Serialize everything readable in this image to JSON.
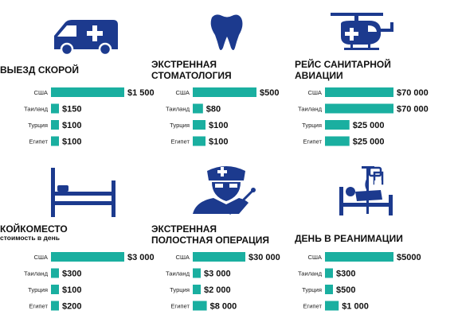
{
  "colors": {
    "bar": "#1aafa0",
    "icon": "#1c3a8e"
  },
  "chart_data": [
    {
      "type": "bar",
      "title": [
        "ВЫЕЗД СКОРОЙ"
      ],
      "subtitle": "",
      "icon": "ambulance-icon",
      "categories": [
        "США",
        "Таиланд",
        "Турция",
        "Египет"
      ],
      "values": [
        1500,
        150,
        100,
        100
      ],
      "value_labels": [
        "$1 500",
        "$150",
        "$100",
        "$100"
      ]
    },
    {
      "type": "bar",
      "title": [
        "ЭКСТРЕННАЯ",
        "СТОМАТОЛОГИЯ"
      ],
      "subtitle": "",
      "icon": "tooth-icon",
      "categories": [
        "США",
        "Таиланд",
        "Турция",
        "Египет"
      ],
      "values": [
        500,
        80,
        100,
        100
      ],
      "value_labels": [
        "$500",
        "$80",
        "$100",
        "$100"
      ]
    },
    {
      "type": "bar",
      "title": [
        "РЕЙС САНИТАРНОЙ",
        "АВИАЦИИ"
      ],
      "subtitle": "",
      "icon": "helicopter-icon",
      "categories": [
        "США",
        "Таиланд",
        "Турция",
        "Египет"
      ],
      "values": [
        70000,
        70000,
        25000,
        25000
      ],
      "value_labels": [
        "$70 000",
        "$70 000",
        "$25 000",
        "$25 000"
      ]
    },
    {
      "type": "bar",
      "title": [
        "КОЙКОМЕСТО"
      ],
      "subtitle": "стоимость в день",
      "icon": "hospital-bed-icon",
      "categories": [
        "США",
        "Таиланд",
        "Турция",
        "Египет"
      ],
      "values": [
        3000,
        300,
        100,
        200
      ],
      "value_labels": [
        "$3 000",
        "$300",
        "$100",
        "$200"
      ]
    },
    {
      "type": "bar",
      "title": [
        "ЭКСТРЕННАЯ",
        "ПОЛОСТНАЯ ОПЕРАЦИЯ"
      ],
      "subtitle": "",
      "icon": "surgeon-icon",
      "categories": [
        "США",
        "Таиланд",
        "Турция",
        "Египет"
      ],
      "values": [
        30000,
        3000,
        2000,
        8000
      ],
      "value_labels": [
        "$30 000",
        "$3 000",
        "$2 000",
        "$8 000"
      ]
    },
    {
      "type": "bar",
      "title": [
        "ДЕНЬ В РЕАНИМАЦИИ"
      ],
      "subtitle": "",
      "icon": "intensive-care-icon",
      "categories": [
        "США",
        "Таиланд",
        "Турция",
        "Египет"
      ],
      "values": [
        5000,
        300,
        500,
        1000
      ],
      "value_labels": [
        "$5000",
        "$300",
        "$500",
        "$1 000"
      ]
    }
  ]
}
